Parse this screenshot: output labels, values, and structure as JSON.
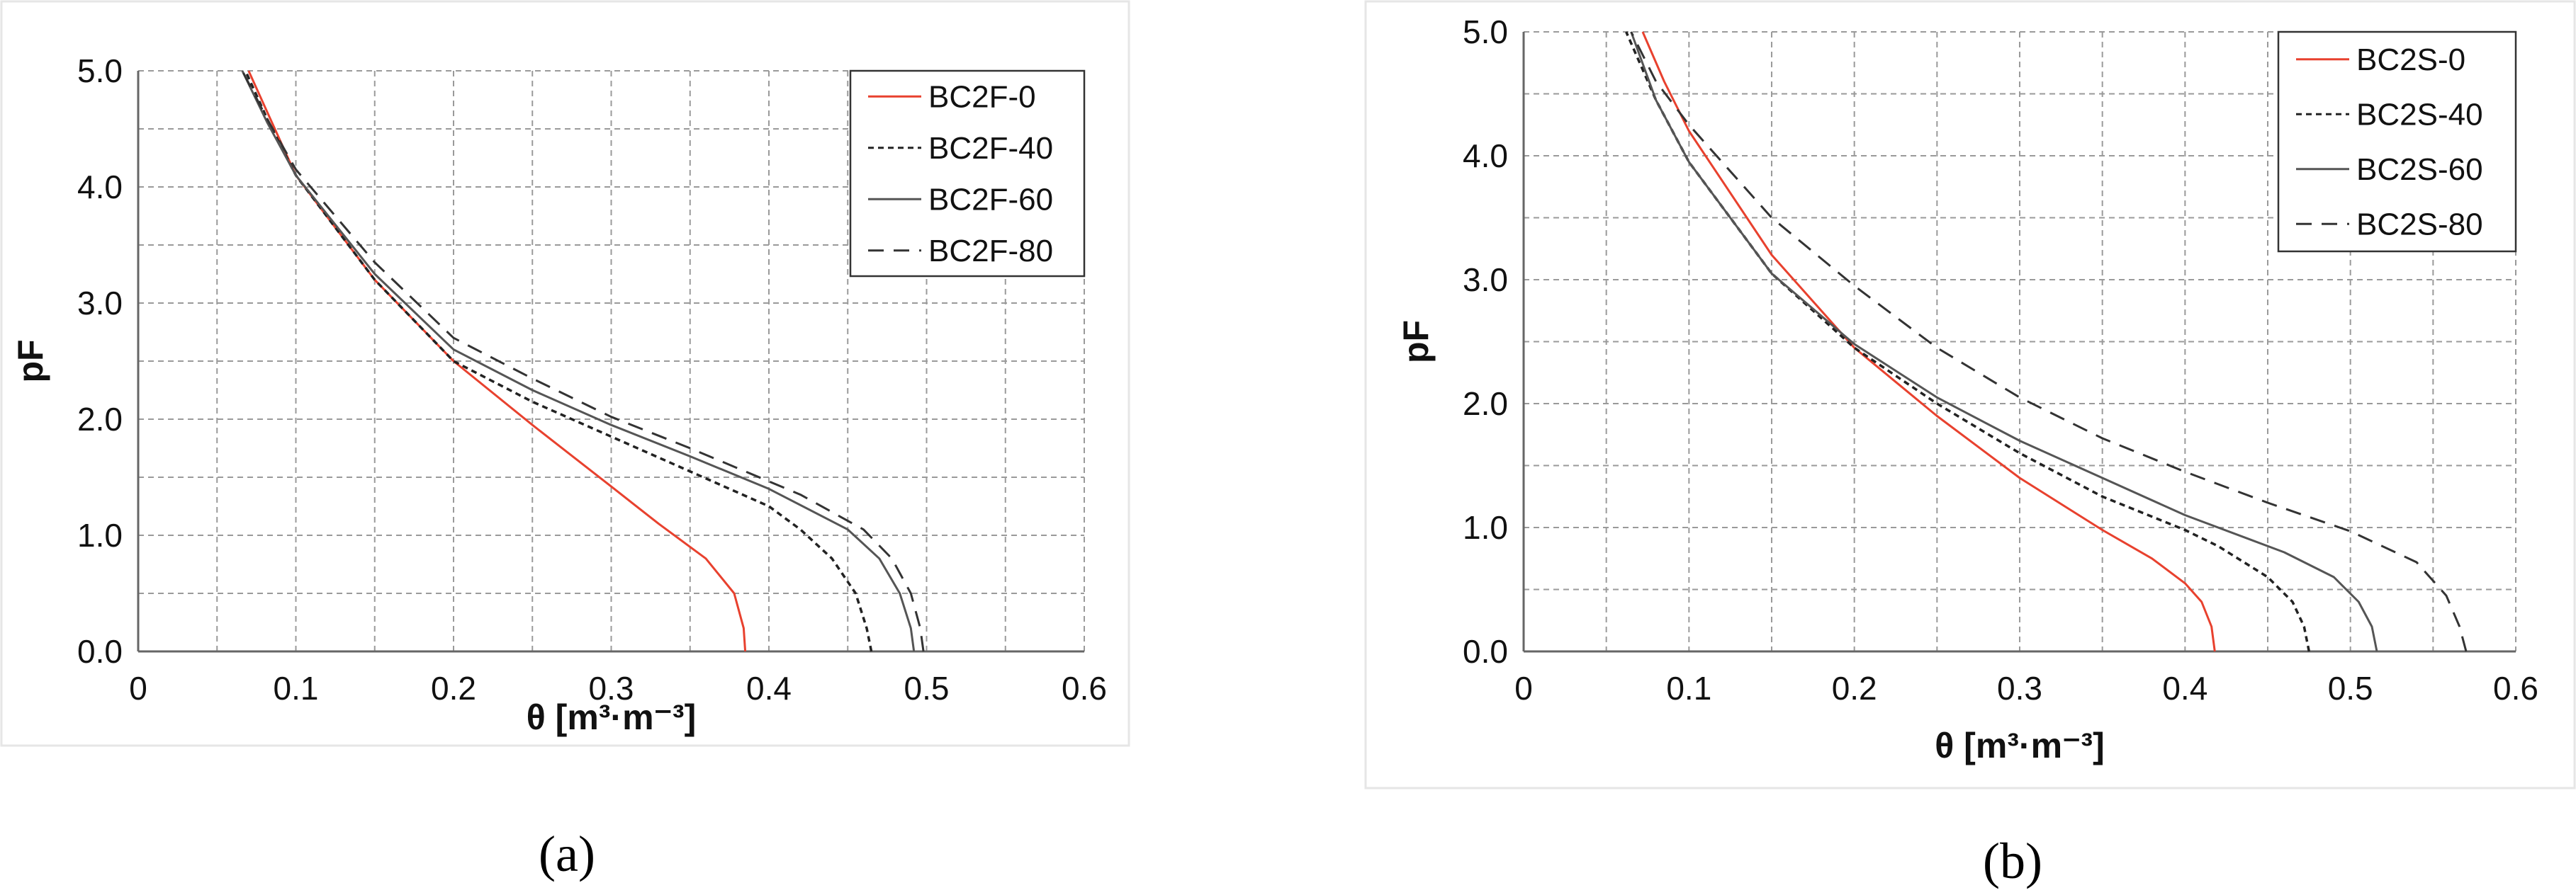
{
  "chart_data": [
    {
      "type": "line",
      "panel_label": "(a)",
      "xlabel": "θ [m³·m⁻³]",
      "ylabel": "pF",
      "xlim": [
        0,
        0.6
      ],
      "ylim": [
        0,
        5
      ],
      "x_ticks": [
        "0",
        "0.1",
        "0.2",
        "0.3",
        "0.4",
        "0.5",
        "0.6"
      ],
      "y_ticks": [
        "0.0",
        "1.0",
        "2.0",
        "3.0",
        "4.0",
        "5.0"
      ],
      "grid": true,
      "legend_position": "top-right",
      "series": [
        {
          "name": "BC2F-0",
          "color": "#e8412e",
          "dash": "solid",
          "points": [
            [
              0.385,
              0
            ],
            [
              0.384,
              0.2
            ],
            [
              0.378,
              0.5
            ],
            [
              0.36,
              0.8
            ],
            [
              0.35,
              0.9
            ],
            [
              0.33,
              1.1
            ],
            [
              0.3,
              1.42
            ],
            [
              0.25,
              1.95
            ],
            [
              0.2,
              2.5
            ],
            [
              0.15,
              3.2
            ],
            [
              0.1,
              4.1
            ],
            [
              0.085,
              4.55
            ],
            [
              0.07,
              5.0
            ]
          ]
        },
        {
          "name": "BC2F-40",
          "color": "#222222",
          "dash": "dotted",
          "points": [
            [
              0.465,
              0
            ],
            [
              0.462,
              0.2
            ],
            [
              0.455,
              0.5
            ],
            [
              0.44,
              0.8
            ],
            [
              0.42,
              1.05
            ],
            [
              0.4,
              1.25
            ],
            [
              0.35,
              1.55
            ],
            [
              0.3,
              1.85
            ],
            [
              0.25,
              2.15
            ],
            [
              0.2,
              2.5
            ],
            [
              0.15,
              3.2
            ],
            [
              0.1,
              4.1
            ],
            [
              0.083,
              4.55
            ],
            [
              0.068,
              5.0
            ]
          ]
        },
        {
          "name": "BC2F-60",
          "color": "#555555",
          "dash": "solid",
          "points": [
            [
              0.492,
              0
            ],
            [
              0.49,
              0.2
            ],
            [
              0.483,
              0.5
            ],
            [
              0.47,
              0.8
            ],
            [
              0.45,
              1.05
            ],
            [
              0.4,
              1.4
            ],
            [
              0.35,
              1.68
            ],
            [
              0.3,
              1.95
            ],
            [
              0.25,
              2.25
            ],
            [
              0.2,
              2.6
            ],
            [
              0.15,
              3.25
            ],
            [
              0.1,
              4.1
            ],
            [
              0.082,
              4.55
            ],
            [
              0.066,
              5.0
            ]
          ]
        },
        {
          "name": "BC2F-80",
          "color": "#333333",
          "dash": "dashed",
          "points": [
            [
              0.498,
              0
            ],
            [
              0.496,
              0.2
            ],
            [
              0.49,
              0.5
            ],
            [
              0.478,
              0.8
            ],
            [
              0.46,
              1.05
            ],
            [
              0.42,
              1.35
            ],
            [
              0.35,
              1.75
            ],
            [
              0.3,
              2.02
            ],
            [
              0.25,
              2.35
            ],
            [
              0.2,
              2.7
            ],
            [
              0.15,
              3.35
            ],
            [
              0.1,
              4.15
            ],
            [
              0.082,
              4.58
            ],
            [
              0.066,
              5.0
            ]
          ]
        }
      ]
    },
    {
      "type": "line",
      "panel_label": "(b)",
      "xlabel": "θ [m³·m⁻³]",
      "ylabel": "pF",
      "xlim": [
        0,
        0.6
      ],
      "ylim": [
        0,
        5
      ],
      "x_ticks": [
        "0",
        "0.1",
        "0.2",
        "0.3",
        "0.4",
        "0.5",
        "0.6"
      ],
      "y_ticks": [
        "0.0",
        "1.0",
        "2.0",
        "3.0",
        "4.0",
        "5.0"
      ],
      "grid": true,
      "legend_position": "top-right",
      "series": [
        {
          "name": "BC2S-0",
          "color": "#e8412e",
          "dash": "solid",
          "points": [
            [
              0.418,
              0
            ],
            [
              0.416,
              0.2
            ],
            [
              0.41,
              0.4
            ],
            [
              0.4,
              0.55
            ],
            [
              0.38,
              0.75
            ],
            [
              0.35,
              0.98
            ],
            [
              0.3,
              1.4
            ],
            [
              0.25,
              1.9
            ],
            [
              0.2,
              2.45
            ],
            [
              0.15,
              3.2
            ],
            [
              0.1,
              4.2
            ],
            [
              0.085,
              4.6
            ],
            [
              0.072,
              5.0
            ]
          ]
        },
        {
          "name": "BC2S-40",
          "color": "#222222",
          "dash": "dotted",
          "points": [
            [
              0.475,
              0
            ],
            [
              0.472,
              0.2
            ],
            [
              0.465,
              0.4
            ],
            [
              0.45,
              0.6
            ],
            [
              0.42,
              0.85
            ],
            [
              0.4,
              0.98
            ],
            [
              0.35,
              1.25
            ],
            [
              0.3,
              1.6
            ],
            [
              0.25,
              2.0
            ],
            [
              0.2,
              2.45
            ],
            [
              0.15,
              3.05
            ],
            [
              0.1,
              3.95
            ],
            [
              0.08,
              4.45
            ],
            [
              0.062,
              5.0
            ]
          ]
        },
        {
          "name": "BC2S-60",
          "color": "#555555",
          "dash": "solid",
          "points": [
            [
              0.516,
              0
            ],
            [
              0.513,
              0.2
            ],
            [
              0.505,
              0.4
            ],
            [
              0.49,
              0.6
            ],
            [
              0.46,
              0.8
            ],
            [
              0.4,
              1.1
            ],
            [
              0.35,
              1.4
            ],
            [
              0.3,
              1.7
            ],
            [
              0.25,
              2.05
            ],
            [
              0.2,
              2.48
            ],
            [
              0.15,
              3.05
            ],
            [
              0.1,
              3.95
            ],
            [
              0.08,
              4.45
            ],
            [
              0.065,
              5.0
            ]
          ]
        },
        {
          "name": "BC2S-80",
          "color": "#333333",
          "dash": "dashed",
          "points": [
            [
              0.57,
              0
            ],
            [
              0.566,
              0.2
            ],
            [
              0.558,
              0.45
            ],
            [
              0.54,
              0.72
            ],
            [
              0.5,
              0.97
            ],
            [
              0.45,
              1.2
            ],
            [
              0.4,
              1.45
            ],
            [
              0.35,
              1.72
            ],
            [
              0.3,
              2.05
            ],
            [
              0.25,
              2.45
            ],
            [
              0.2,
              2.95
            ],
            [
              0.15,
              3.5
            ],
            [
              0.1,
              4.25
            ],
            [
              0.08,
              4.6
            ],
            [
              0.065,
              5.0
            ]
          ]
        }
      ]
    }
  ]
}
